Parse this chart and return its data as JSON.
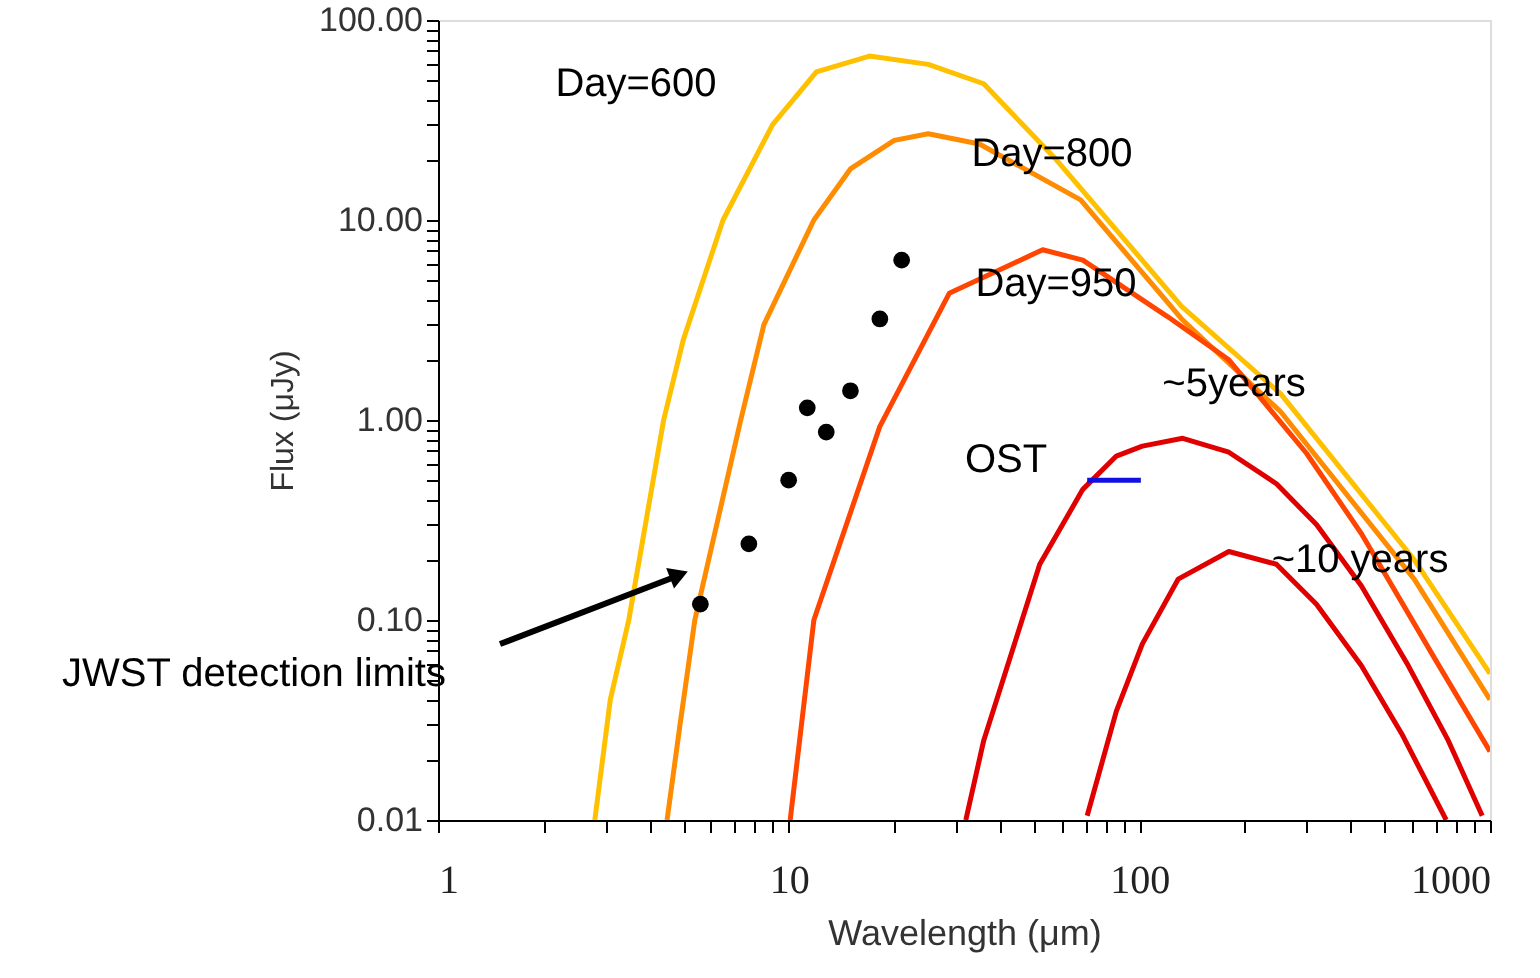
{
  "chart_data": {
    "type": "line",
    "xlabel": "Wavelength (μm)",
    "ylabel": "Flux (μJy)",
    "log": "xy",
    "xlim": [
      1,
      1000
    ],
    "ylim": [
      0.01,
      100
    ],
    "xticks": [
      1,
      {
        "value": 2,
        "label": null
      },
      {
        "value": 3,
        "label": null
      },
      {
        "value": 4,
        "label": null
      },
      {
        "value": 5,
        "label": null
      },
      {
        "value": 6,
        "label": null
      },
      {
        "value": 7,
        "label": null
      },
      {
        "value": 8,
        "label": null
      },
      {
        "value": 9,
        "label": null
      },
      10,
      {
        "value": 20,
        "label": null
      },
      {
        "value": 30,
        "label": null
      },
      {
        "value": 40,
        "label": null
      },
      {
        "value": 50,
        "label": null
      },
      {
        "value": 60,
        "label": null
      },
      {
        "value": 70,
        "label": null
      },
      {
        "value": 80,
        "label": null
      },
      {
        "value": 90,
        "label": null
      },
      100,
      {
        "value": 200,
        "label": null
      },
      {
        "value": 300,
        "label": null
      },
      {
        "value": 400,
        "label": null
      },
      {
        "value": 500,
        "label": null
      },
      {
        "value": 600,
        "label": null
      },
      {
        "value": 700,
        "label": null
      },
      {
        "value": 800,
        "label": null
      },
      {
        "value": 900,
        "label": null
      },
      1000
    ],
    "yticks": [
      {
        "value": 0.01,
        "label": "0.01"
      },
      {
        "value": 0.02,
        "label": null
      },
      {
        "value": 0.03,
        "label": null
      },
      {
        "value": 0.04,
        "label": null
      },
      {
        "value": 0.05,
        "label": null
      },
      {
        "value": 0.06,
        "label": null
      },
      {
        "value": 0.07,
        "label": null
      },
      {
        "value": 0.08,
        "label": null
      },
      {
        "value": 0.09,
        "label": null
      },
      {
        "value": 0.1,
        "label": "0.10"
      },
      {
        "value": 0.2,
        "label": null
      },
      {
        "value": 0.3,
        "label": null
      },
      {
        "value": 0.4,
        "label": null
      },
      {
        "value": 0.5,
        "label": null
      },
      {
        "value": 0.6,
        "label": null
      },
      {
        "value": 0.7,
        "label": null
      },
      {
        "value": 0.8,
        "label": null
      },
      {
        "value": 0.9,
        "label": null
      },
      {
        "value": 1,
        "label": "1.00"
      },
      {
        "value": 2,
        "label": null
      },
      {
        "value": 3,
        "label": null
      },
      {
        "value": 4,
        "label": null
      },
      {
        "value": 5,
        "label": null
      },
      {
        "value": 6,
        "label": null
      },
      {
        "value": 7,
        "label": null
      },
      {
        "value": 8,
        "label": null
      },
      {
        "value": 9,
        "label": null
      },
      {
        "value": 10,
        "label": "10.00"
      },
      {
        "value": 20,
        "label": null
      },
      {
        "value": 30,
        "label": null
      },
      {
        "value": 40,
        "label": null
      },
      {
        "value": 50,
        "label": null
      },
      {
        "value": 60,
        "label": null
      },
      {
        "value": 70,
        "label": null
      },
      {
        "value": 80,
        "label": null
      },
      {
        "value": 90,
        "label": null
      },
      {
        "value": 100,
        "label": "100.00"
      }
    ],
    "series": [
      {
        "color": "#ffc000",
        "x": [
          2.8,
          3.1,
          3.5,
          4.4,
          5,
          6.5,
          9,
          12,
          17,
          25,
          36,
          58,
          132,
          253,
          608,
          1000
        ],
        "values": [
          0.01,
          0.04,
          0.1,
          1,
          2.5,
          10,
          30,
          55,
          66,
          60,
          48,
          20,
          3.7,
          1.35,
          0.2,
          0.054
        ]
      },
      {
        "color": "#ff8c00",
        "x": [
          4.5,
          4.9,
          5.4,
          7.3,
          8.5,
          11.8,
          15,
          20,
          25,
          35,
          68,
          132,
          253,
          608,
          1000
        ],
        "values": [
          0.01,
          0.03,
          0.1,
          1,
          3,
          10,
          18,
          25,
          27,
          24,
          12.6,
          3.2,
          1.1,
          0.16,
          0.04
        ]
      },
      {
        "color": "#ff4500",
        "x": [
          10.1,
          11.8,
          18.2,
          28.7,
          53,
          69,
          120,
          180,
          300,
          430,
          700,
          1000
        ],
        "values": [
          0.01,
          0.1,
          0.93,
          4.3,
          7.1,
          6.3,
          3.3,
          2,
          0.68,
          0.27,
          0.063,
          0.022
        ]
      },
      {
        "color": "#e00000",
        "x": [
          32,
          36,
          52,
          69,
          86,
          102,
          133,
          180,
          246,
          320,
          430,
          585,
          760,
          950
        ],
        "values": [
          0.01,
          0.025,
          0.19,
          0.45,
          0.66,
          0.74,
          0.81,
          0.69,
          0.48,
          0.3,
          0.148,
          0.059,
          0.025,
          0.0105
        ]
      },
      {
        "color": "#e00000",
        "x": [
          71,
          86,
          102,
          129,
          180,
          246,
          320,
          430,
          560,
          750
        ],
        "values": [
          0.0105,
          0.035,
          0.076,
          0.16,
          0.22,
          0.19,
          0.12,
          0.059,
          0.027,
          0.01
        ]
      },
      {
        "color": "#1010e0",
        "x": [
          71,
          101
        ],
        "values": [
          0.5,
          0.5
        ]
      },
      {
        "type": "scatter",
        "color": "#000000",
        "marker": "circle",
        "x": [
          5.6,
          7.7,
          10,
          11.3,
          12.8,
          15,
          18.2,
          21
        ],
        "values": [
          0.12,
          0.24,
          0.5,
          1.15,
          0.87,
          1.4,
          3.2,
          6.3
        ]
      }
    ],
    "annotations": [
      "Day=600",
      "Day=800",
      "Day=950",
      "~5years",
      "OST",
      "~10 years",
      "JWST detection limits"
    ]
  }
}
